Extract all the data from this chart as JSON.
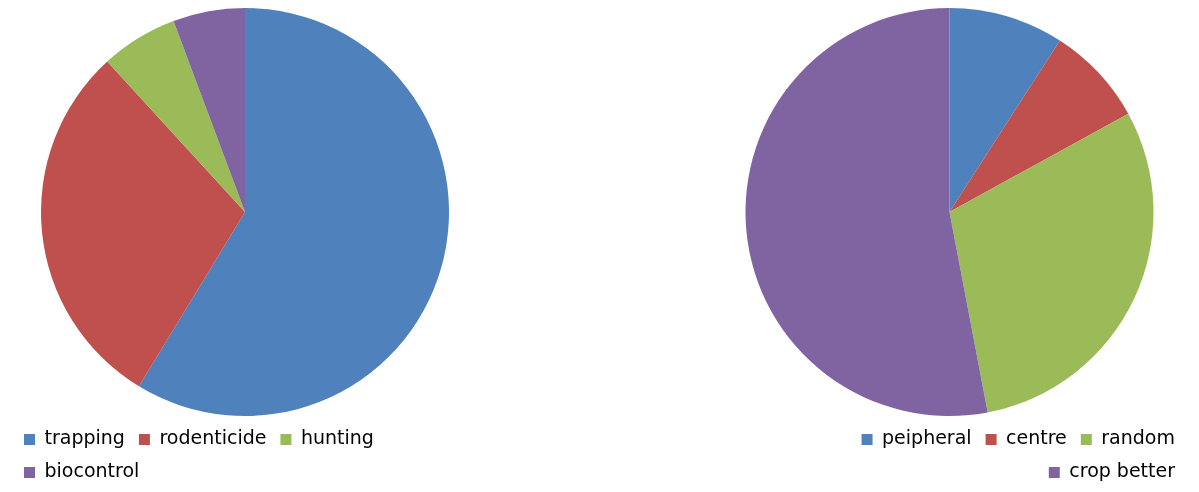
{
  "chart_data": [
    {
      "type": "pie",
      "categories": [
        "trapping",
        "rodenticide",
        "hunting",
        "biocontrol"
      ],
      "values": [
        58.7,
        29.5,
        6.1,
        5.7
      ],
      "colors": [
        "#4f81bd",
        "#c0504d",
        "#9bbb59",
        "#8064a2"
      ],
      "legend": "bottom left"
    },
    {
      "type": "pie",
      "categories": [
        "peipheral",
        "centre",
        "random",
        "crop better"
      ],
      "values": [
        9.1,
        7.9,
        30.0,
        53.0
      ],
      "colors": [
        "#4f81bd",
        "#c0504d",
        "#9bbb59",
        "#8064a2"
      ],
      "legend": "bottom right"
    }
  ]
}
